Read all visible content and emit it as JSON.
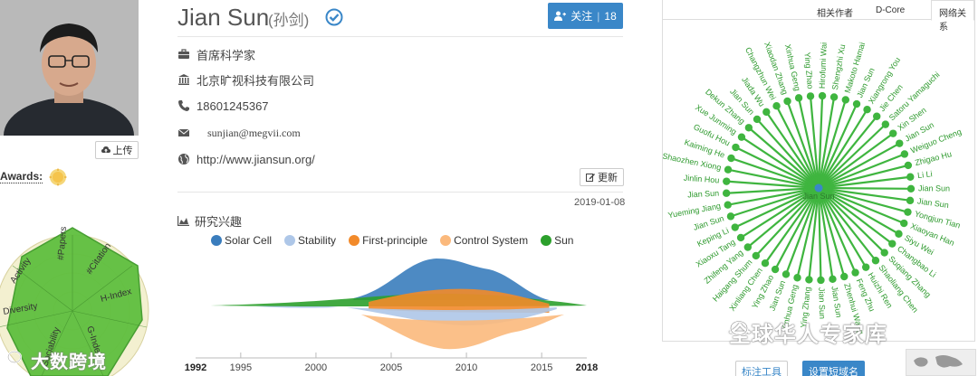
{
  "profile": {
    "name": "Jian Sun",
    "chinese_name": "(孙剑)",
    "follow_label": "关注",
    "follow_count": "18",
    "upload_label": "上传",
    "awards_label": "Awards:",
    "title": "首席科学家",
    "org": "北京旷视科技有限公司",
    "phone": "18601245367",
    "email": "sunjian@megvii.com",
    "homepage": "http://www.jiansun.org/",
    "update_label": "更新",
    "update_date": "2019-01-08",
    "interests_title": "研究兴趣"
  },
  "radar": {
    "axes": [
      "#Papers",
      "#Citation",
      "H-Index",
      "G-Index",
      "Sociability",
      "Diversity",
      "Activity"
    ]
  },
  "chart_data": {
    "type": "area",
    "subtype": "streamgraph",
    "series": [
      {
        "name": "Solar Cell",
        "color": "#3a7dbd"
      },
      {
        "name": "Stability",
        "color": "#aec7e8"
      },
      {
        "name": "First-principle",
        "color": "#f28a2a"
      },
      {
        "name": "Control System",
        "color": "#fbb97c"
      },
      {
        "name": "Sun",
        "color": "#2ca02c"
      }
    ],
    "x_ticks": [
      "1995",
      "2000",
      "2005",
      "2010",
      "2015"
    ],
    "x_start": "1992",
    "x_end": "2018"
  },
  "panel": {
    "tabs": [
      "相关作者",
      "D-Core",
      "网络关系"
    ],
    "active_tab": "网络关系",
    "center_node": "Jian Sun",
    "nodes": [
      "Hirofumi Wai",
      "Shengzhi Xu",
      "Makoto Hamai",
      "Jian Sun",
      "Xiangrong You",
      "Jie Chen",
      "Satoru Yamaguchi",
      "Xin Shen",
      "Jian Sun",
      "Weiguo Cheng",
      "Zhigao Hu",
      "Li Li",
      "Jian Sun",
      "Jian Sun",
      "Yongjun Tian",
      "Xiaoyan Han",
      "Siyu Wei",
      "Changbao Li",
      "Suqiang Zhang",
      "Shaoliang Chen",
      "Huizhi Ren",
      "Feng Zhu",
      "Zhenhui Wang",
      "Jian Sun",
      "Jian Sun",
      "Ying Zhang",
      "Xinhua Geng",
      "Jian Sun",
      "Ying Zhao",
      "Xinliang Chen",
      "Haigang Shum",
      "Zhifeng Yang",
      "Xiaoxu Tang",
      "Keping Li",
      "Jian Sun",
      "Yueming Jiang",
      "Jian Sun",
      "Jinlin Hou",
      "Shaozhen Xiong",
      "Kaiming He",
      "Guofu Hou",
      "Xue Junming",
      "Dekun Zhang",
      "Jian Sun",
      "Jiada Wu",
      "Changzhun Wei",
      "Xiaodan Zhang",
      "Xinhua Geng",
      "Ying Zhao"
    ],
    "node_color": "#3fb53f",
    "label_color": "#2e9a2e",
    "tool_buttons": [
      "标注工具",
      "设置短域名"
    ]
  },
  "watermarks": {
    "left": "大数跨境",
    "right": "全球华人专家库"
  },
  "colors": {
    "accent": "#3a87c8",
    "green": "#3fb53f",
    "award": "#f5c44c"
  }
}
